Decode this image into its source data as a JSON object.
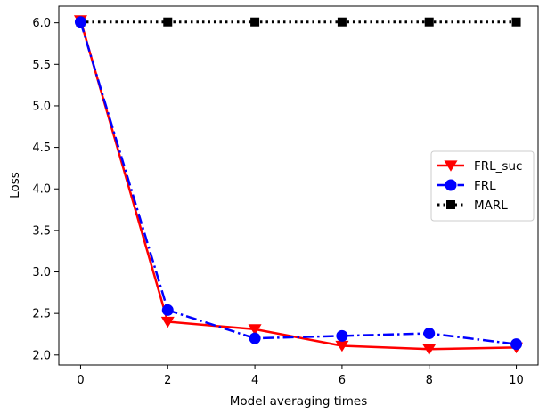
{
  "chart_data": {
    "type": "line",
    "title": "",
    "xlabel": "Model averaging times",
    "ylabel": "Loss",
    "xlim": [
      -0.5,
      10.5
    ],
    "ylim": [
      1.88,
      6.2
    ],
    "xticks": [
      0,
      2,
      4,
      6,
      8,
      10
    ],
    "yticks": [
      2.0,
      2.5,
      3.0,
      3.5,
      4.0,
      4.5,
      5.0,
      5.5,
      6.0
    ],
    "grid": false,
    "legend_position": "center-right",
    "x": [
      0,
      2,
      4,
      6,
      8,
      10
    ],
    "series": [
      {
        "name": "FRL_suc",
        "values": [
          6.03,
          2.4,
          2.31,
          2.11,
          2.07,
          2.09
        ],
        "color": "#ff0000",
        "linestyle": "solid",
        "marker": "triangle-down"
      },
      {
        "name": "FRL",
        "values": [
          6.01,
          2.54,
          2.2,
          2.23,
          2.26,
          2.13
        ],
        "color": "#0000ff",
        "linestyle": "dashdot",
        "marker": "circle"
      },
      {
        "name": "MARL",
        "values": [
          6.01,
          6.01,
          6.01,
          6.01,
          6.01,
          6.01
        ],
        "color": "#000000",
        "linestyle": "dotted",
        "marker": "square"
      }
    ]
  }
}
